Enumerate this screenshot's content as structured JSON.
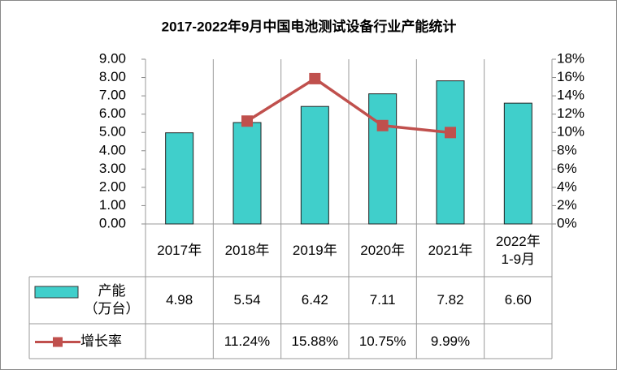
{
  "chart_data": {
    "type": "bar_line_table",
    "title": "2017-2022年9月中国电池测试设备行业产能统计",
    "categories": [
      "2017年",
      "2018年",
      "2019年",
      "2020年",
      "2021年",
      "2022年\n1-9月"
    ],
    "series": [
      {
        "name": "产能\n（万台）",
        "type": "bar",
        "color": "#40cfcb",
        "values": [
          4.98,
          5.54,
          6.42,
          7.11,
          7.82,
          6.6
        ],
        "value_labels": [
          "4.98",
          "5.54",
          "6.42",
          "7.11",
          "7.82",
          "6.60"
        ]
      },
      {
        "name": "增长率",
        "type": "line",
        "axis": "y2",
        "color": "#c0504d",
        "values": [
          null,
          11.24,
          15.88,
          10.75,
          9.99,
          null
        ],
        "value_labels": [
          null,
          "11.24%",
          "15.88%",
          "10.75%",
          "9.99%",
          null
        ]
      }
    ],
    "ylim": [
      0,
      9
    ],
    "yticks": [
      {
        "value": 0,
        "label": "0.00"
      },
      {
        "value": 1,
        "label": "1.00"
      },
      {
        "value": 2,
        "label": "2.00"
      },
      {
        "value": 3,
        "label": "3.00"
      },
      {
        "value": 4,
        "label": "4.00"
      },
      {
        "value": 5,
        "label": "5.00"
      },
      {
        "value": 6,
        "label": "6.00"
      },
      {
        "value": 7,
        "label": "7.00"
      },
      {
        "value": 8,
        "label": "8.00"
      },
      {
        "value": 9,
        "label": "9.00"
      }
    ],
    "y2lim": [
      0,
      18
    ],
    "y2ticks": [
      {
        "value": 0,
        "label": "0%"
      },
      {
        "value": 2,
        "label": "2%"
      },
      {
        "value": 4,
        "label": "4%"
      },
      {
        "value": 6,
        "label": "6%"
      },
      {
        "value": 8,
        "label": "8%"
      },
      {
        "value": 10,
        "label": "10%"
      },
      {
        "value": 12,
        "label": "12%"
      },
      {
        "value": 14,
        "label": "14%"
      },
      {
        "value": 16,
        "label": "16%"
      },
      {
        "value": 18,
        "label": "18%"
      }
    ]
  }
}
